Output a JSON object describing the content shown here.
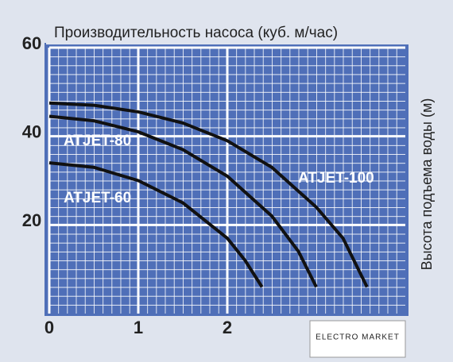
{
  "chart_data": {
    "type": "line",
    "title": "Производительность насоса (куб. м/час)",
    "y_label": "Высота подъема воды (м)",
    "xlim": [
      0,
      4
    ],
    "ylim": [
      0,
      60
    ],
    "xticks": [
      0,
      1,
      2
    ],
    "yticks": [
      20,
      40,
      60
    ],
    "grid": true,
    "series": [
      {
        "name": "ATJET-100",
        "color": "#111111",
        "x": [
          0,
          0.5,
          1,
          1.5,
          2,
          2.5,
          3,
          3.3,
          3.57
        ],
        "values": [
          47.5,
          47,
          45.5,
          43,
          39,
          33,
          24,
          17,
          6
        ]
      },
      {
        "name": "ATJET-80",
        "color": "#111111",
        "x": [
          0,
          0.5,
          1,
          1.5,
          2,
          2.5,
          2.8,
          3.0
        ],
        "values": [
          44.5,
          43.5,
          41,
          37,
          31,
          22,
          14,
          6
        ]
      },
      {
        "name": "ATJET-60",
        "color": "#111111",
        "x": [
          0,
          0.5,
          1,
          1.5,
          2,
          2.2,
          2.39
        ],
        "values": [
          34,
          33,
          30,
          25,
          17,
          12,
          6
        ]
      }
    ],
    "watermark": "ELECTRO MARKET"
  }
}
